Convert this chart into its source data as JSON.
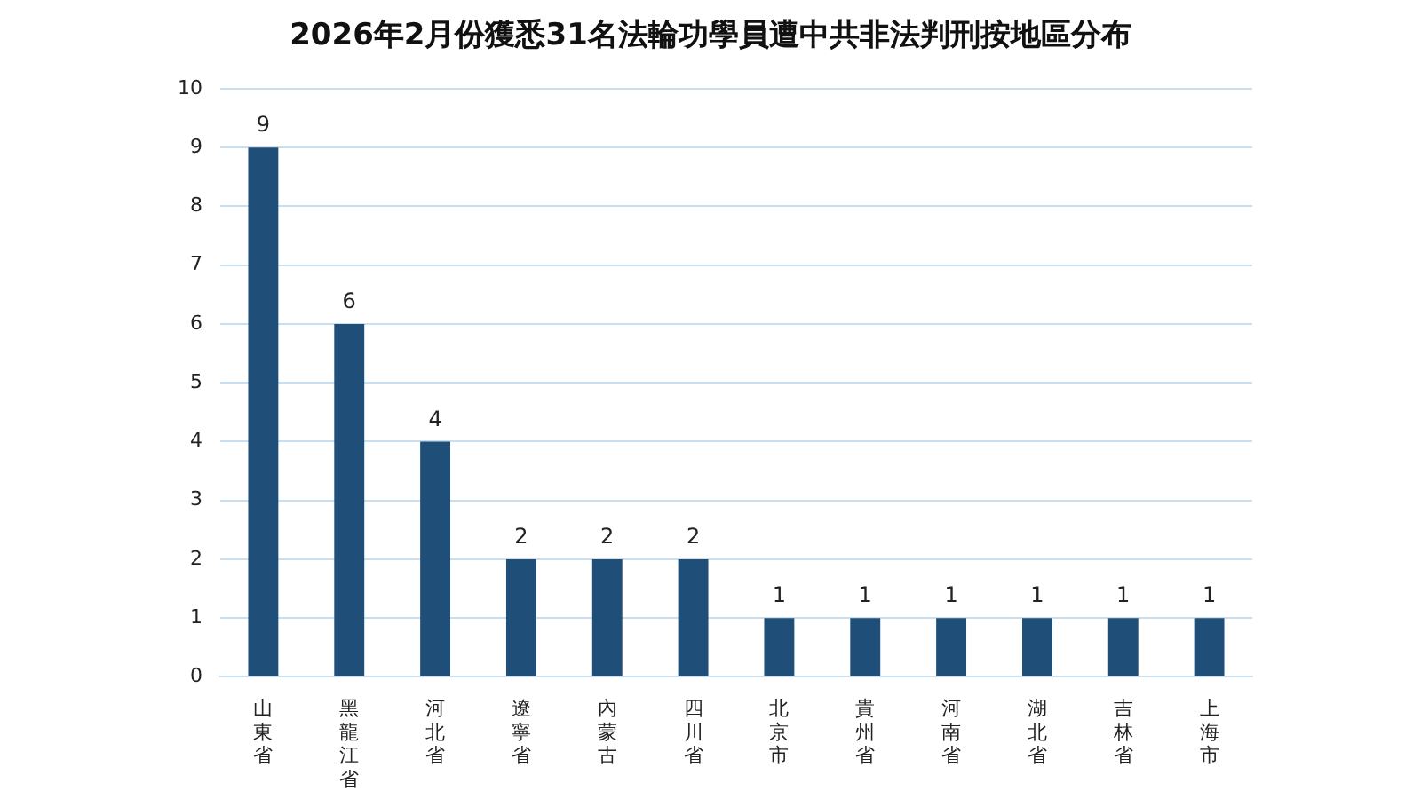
{
  "chart_data": {
    "type": "bar",
    "title": "2026年2月份獲悉31名法輪功學員遭中共非法判刑按地區分布",
    "categories": [
      "山東省",
      "黑龍江省",
      "河北省",
      "遼寧省",
      "內蒙古",
      "四川省",
      "北京市",
      "貴州省",
      "河南省",
      "湖北省",
      "吉林省",
      "上海市"
    ],
    "values": [
      9,
      6,
      4,
      2,
      2,
      2,
      1,
      1,
      1,
      1,
      1,
      1
    ],
    "color": "#1f4e79",
    "ylim": [
      0,
      10
    ],
    "yticks": [
      0,
      1,
      2,
      3,
      4,
      5,
      6,
      7,
      8,
      9,
      10
    ],
    "grid": "y",
    "data_labels": true
  }
}
